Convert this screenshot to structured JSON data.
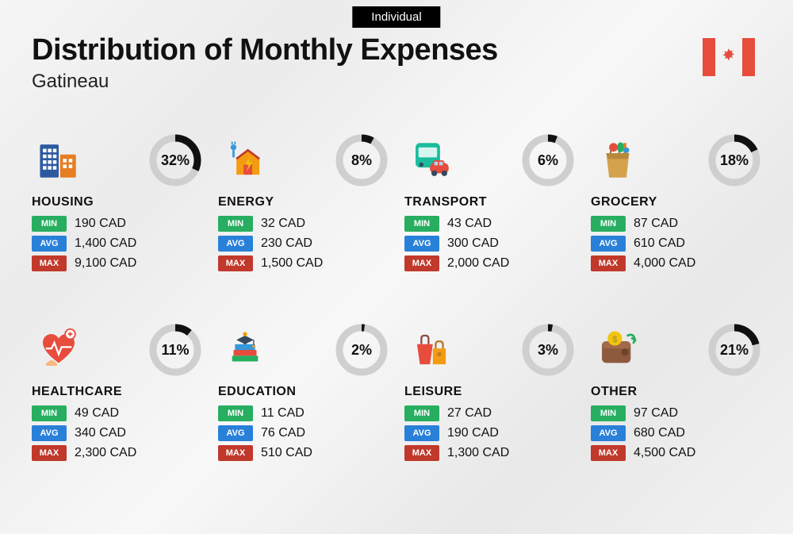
{
  "badge": "Individual",
  "title": "Distribution of Monthly Expenses",
  "subtitle": "Gatineau",
  "currency": "CAD",
  "labels": {
    "min": "MIN",
    "avg": "AVG",
    "max": "MAX"
  },
  "colors": {
    "min": "#27ae60",
    "avg": "#2980d9",
    "max": "#c0392b",
    "donut_track": "#cfcfcf",
    "donut_fill": "#111111",
    "flag_red": "#e74c3c",
    "text": "#111111",
    "badge_bg": "#000000"
  },
  "donut": {
    "stroke_width": 9,
    "radius": 28
  },
  "categories": [
    {
      "key": "housing",
      "name": "HOUSING",
      "percent": 32,
      "min": "190",
      "avg": "1,400",
      "max": "9,100"
    },
    {
      "key": "energy",
      "name": "ENERGY",
      "percent": 8,
      "min": "32",
      "avg": "230",
      "max": "1,500"
    },
    {
      "key": "transport",
      "name": "TRANSPORT",
      "percent": 6,
      "min": "43",
      "avg": "300",
      "max": "2,000"
    },
    {
      "key": "grocery",
      "name": "GROCERY",
      "percent": 18,
      "min": "87",
      "avg": "610",
      "max": "4,000"
    },
    {
      "key": "healthcare",
      "name": "HEALTHCARE",
      "percent": 11,
      "min": "49",
      "avg": "340",
      "max": "2,300"
    },
    {
      "key": "education",
      "name": "EDUCATION",
      "percent": 2,
      "min": "11",
      "avg": "76",
      "max": "510"
    },
    {
      "key": "leisure",
      "name": "LEISURE",
      "percent": 3,
      "min": "27",
      "avg": "190",
      "max": "1,300"
    },
    {
      "key": "other",
      "name": "OTHER",
      "percent": 21,
      "min": "97",
      "avg": "680",
      "max": "4,500"
    }
  ]
}
